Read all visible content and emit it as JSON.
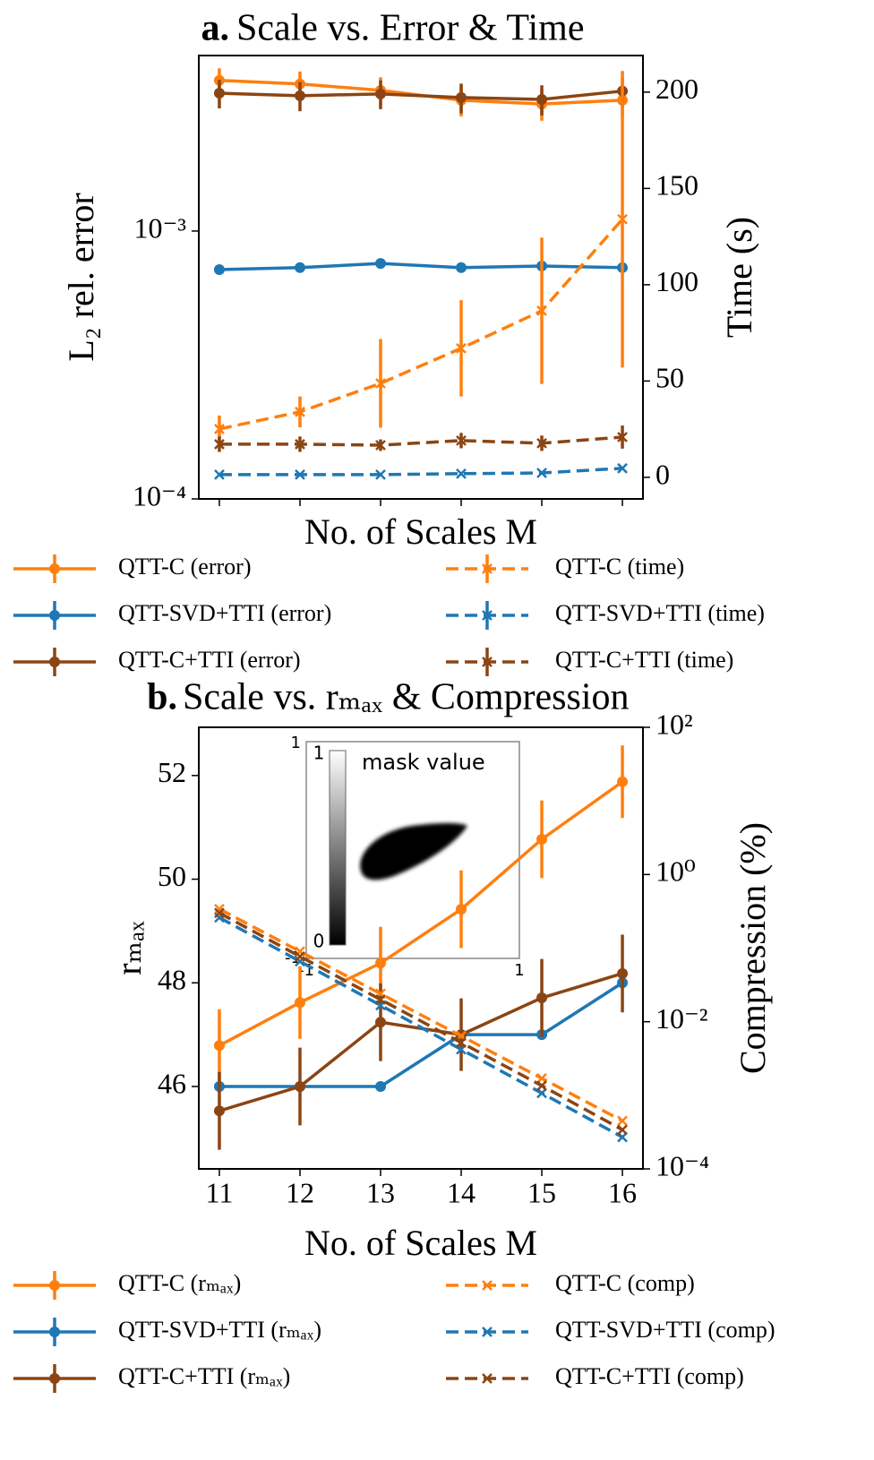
{
  "chart_data": [
    {
      "type": "line",
      "panel_label": "a.",
      "title": "Scale vs. Error & Time",
      "xlabel": "No. of Scales M",
      "ylabel": "L₂ rel. error",
      "y2label": "Time (s)",
      "x": [
        11,
        12,
        13,
        14,
        15,
        16
      ],
      "xlim": [
        10.745,
        16.255
      ],
      "xticks": [
        11,
        12,
        13,
        14,
        15,
        16
      ],
      "xtick_labels": false,
      "ylog": true,
      "ylim": [
        0.0001,
        0.00452
      ],
      "yticks": [
        {
          "value": 0.0001,
          "label": "10⁻⁴"
        },
        {
          "value": 0.001,
          "label": "10⁻³"
        }
      ],
      "y2log": false,
      "y2lim": [
        -11.2,
        219
      ],
      "y2ticks": [
        0,
        50,
        100,
        150,
        200
      ],
      "series": [
        {
          "name": "QTT-C (error)",
          "color": "#ff7f0e",
          "axis": "y",
          "linestyle": "solid",
          "marker": "o",
          "values": [
            0.00365,
            0.00354,
            0.00335,
            0.00308,
            0.00298,
            0.00308
          ],
          "errors": [
            0.0004,
            0.0004,
            0.0004,
            0.0004,
            0.0004,
            0.0004
          ]
        },
        {
          "name": "QTT-SVD+TTI (error)",
          "color": "#1f77b4",
          "axis": "y",
          "linestyle": "solid",
          "marker": "o",
          "values": [
            0.000718,
            0.00073,
            0.000757,
            0.00073,
            0.00074,
            0.00073
          ],
          "errors": [
            1e-05,
            1e-05,
            1e-05,
            1e-05,
            1e-05,
            1e-05
          ]
        },
        {
          "name": "QTT-C+TTI (error)",
          "color": "#8b4513",
          "axis": "y",
          "linestyle": "solid",
          "marker": "o",
          "values": [
            0.00327,
            0.0032,
            0.00325,
            0.00315,
            0.0031,
            0.00333
          ],
          "errors": [
            0.0004,
            0.0004,
            0.0004,
            0.0004,
            0.0004,
            0.0004
          ]
        },
        {
          "name": "QTT-C (time)",
          "color": "#ff7f0e",
          "axis": "y2",
          "linestyle": "dashed",
          "marker": "x",
          "values": [
            25.1,
            34,
            48.8,
            67,
            86.5,
            134
          ],
          "errors": [
            7,
            8,
            23,
            25,
            38,
            77
          ]
        },
        {
          "name": "QTT-SVD+TTI (time)",
          "color": "#1f77b4",
          "axis": "y2",
          "linestyle": "dashed",
          "marker": "x",
          "values": [
            1.4,
            1.4,
            1.4,
            1.9,
            2.3,
            4.7
          ],
          "errors": [
            0.5,
            0.5,
            0.5,
            0.5,
            0.5,
            0.5
          ]
        },
        {
          "name": "QTT-C+TTI (time)",
          "color": "#8b4513",
          "axis": "y2",
          "linestyle": "dashed",
          "marker": "x",
          "values": [
            17.2,
            17.2,
            16.7,
            19.1,
            17.7,
            20.9
          ],
          "errors": [
            4,
            4,
            3,
            4,
            4,
            6
          ]
        }
      ]
    },
    {
      "type": "line",
      "panel_label": "b.",
      "title": "Scale vs. rₘₐₓ & Compression",
      "xlabel": "No. of Scales M",
      "ylabel": "rₘₐₓ",
      "y2label": "Compression (%)",
      "x": [
        11,
        12,
        13,
        14,
        15,
        16
      ],
      "xlim": [
        10.745,
        16.255
      ],
      "xticks": [
        11,
        12,
        13,
        14,
        15,
        16
      ],
      "xtick_labels": true,
      "ylog": false,
      "ylim": [
        44.41,
        52.93
      ],
      "yticks": [
        46,
        48,
        50,
        52
      ],
      "y2log": true,
      "y2lim": [
        0.0001,
        100
      ],
      "y2ticks": [
        {
          "value": 0.0001,
          "label": "10⁻⁴"
        },
        {
          "value": 0.01,
          "label": "10⁻²"
        },
        {
          "value": 1,
          "label": "10⁰"
        },
        {
          "value": 100,
          "label": "10²"
        }
      ],
      "series": [
        {
          "name": "QTT-C (rₘₐₓ)",
          "color": "#ff7f0e",
          "axis": "y",
          "linestyle": "solid",
          "marker": "o",
          "values": [
            46.79,
            47.62,
            48.38,
            49.42,
            50.77,
            51.88
          ],
          "errors": [
            0.7,
            0.7,
            0.7,
            0.75,
            0.75,
            0.7
          ]
        },
        {
          "name": "QTT-SVD+TTI (rₘₐₓ)",
          "color": "#1f77b4",
          "axis": "y",
          "linestyle": "solid",
          "marker": "o",
          "values": [
            46,
            46,
            46,
            47,
            47,
            48
          ],
          "errors": [
            0,
            0,
            0,
            0,
            0,
            0
          ]
        },
        {
          "name": "QTT-C+TTI (rₘₐₓ)",
          "color": "#8b4513",
          "axis": "y",
          "linestyle": "solid",
          "marker": "o",
          "values": [
            45.53,
            46,
            47.24,
            47,
            47.71,
            48.18
          ],
          "errors": [
            0.75,
            0.75,
            0.75,
            0.7,
            0.75,
            0.75
          ]
        },
        {
          "name": "QTT-C (comp)",
          "color": "#ff7f0e",
          "axis": "y2",
          "linestyle": "dashed",
          "marker": "x",
          "values": [
            0.34,
            0.09,
            0.024,
            0.0064,
            0.0017,
            0.00045
          ]
        },
        {
          "name": "QTT-SVD+TTI (comp)",
          "color": "#1f77b4",
          "axis": "y2",
          "linestyle": "dashed",
          "marker": "x",
          "values": [
            0.26,
            0.066,
            0.0167,
            0.0042,
            0.00107,
            0.00027
          ]
        },
        {
          "name": "QTT-C+TTI (comp)",
          "color": "#8b4513",
          "axis": "y2",
          "linestyle": "dashed",
          "marker": "x",
          "values": [
            0.3,
            0.077,
            0.02,
            0.0052,
            0.00135,
            0.00034
          ]
        }
      ],
      "inset": {
        "colorbar_label": "mask value",
        "colorbar_ticks": [
          0,
          1
        ],
        "xticks": [
          -1,
          1
        ],
        "yticks": [
          -1,
          1
        ]
      }
    }
  ]
}
